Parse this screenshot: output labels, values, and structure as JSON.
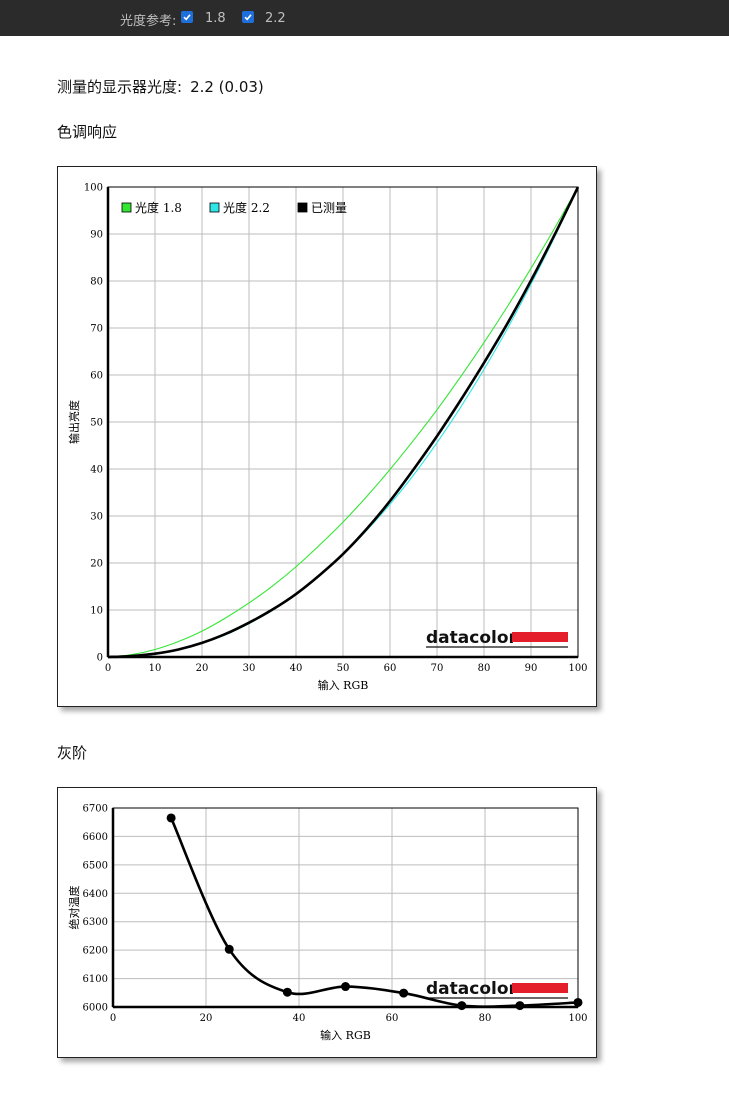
{
  "header": {
    "gamma_ref_label": "光度参考:",
    "options": [
      {
        "label": "1.8",
        "checked": true
      },
      {
        "label": "2.2",
        "checked": true
      }
    ]
  },
  "summary": {
    "label": "测量的显示器光度:",
    "value": "2.2 (0.03)"
  },
  "sections": {
    "tone_title": "色调响应",
    "gray_title": "灰阶"
  },
  "colors": {
    "gamma18": "#33e633",
    "gamma22": "#2ee6e6",
    "measured": "#000000",
    "grid": "#bdbdbd",
    "brand_bar": "#e41e2b"
  },
  "brand": "datacolor",
  "chart_data": [
    {
      "type": "line",
      "xlabel": "输入 RGB",
      "ylabel": "输出亮度",
      "xlim": [
        0,
        100
      ],
      "ylim": [
        0,
        100
      ],
      "xticks": [
        0,
        10,
        20,
        30,
        40,
        50,
        60,
        70,
        80,
        90,
        100
      ],
      "yticks": [
        0,
        10,
        20,
        30,
        40,
        50,
        60,
        70,
        80,
        90,
        100
      ],
      "grid": true,
      "legend": "top-left",
      "series": [
        {
          "name": "光度 1.8",
          "key": "gamma18",
          "x": [
            0,
            5,
            10,
            15,
            20,
            25,
            30,
            35,
            40,
            45,
            50,
            55,
            60,
            65,
            70,
            75,
            80,
            85,
            90,
            95,
            100
          ],
          "y": [
            0,
            0.5,
            1.6,
            3.3,
            5.5,
            8.3,
            11.5,
            15.1,
            19.2,
            23.8,
            28.7,
            34.1,
            39.9,
            46.1,
            52.6,
            59.6,
            66.9,
            74.6,
            82.7,
            91.2,
            100
          ]
        },
        {
          "name": "光度 2.2",
          "key": "gamma22",
          "x": [
            0,
            5,
            10,
            15,
            20,
            25,
            30,
            35,
            40,
            45,
            50,
            55,
            60,
            65,
            70,
            75,
            80,
            85,
            90,
            95,
            100
          ],
          "y": [
            0,
            0.1,
            0.6,
            1.5,
            2.9,
            4.7,
            7.1,
            9.9,
            13.3,
            17.3,
            21.8,
            26.9,
            32.5,
            38.7,
            45.6,
            53.1,
            61.2,
            69.9,
            79.3,
            89.3,
            100
          ]
        },
        {
          "name": "已测量",
          "key": "measured",
          "x": [
            0,
            5,
            10,
            15,
            20,
            25,
            30,
            35,
            40,
            45,
            50,
            55,
            60,
            65,
            70,
            75,
            80,
            85,
            90,
            95,
            100
          ],
          "y": [
            0,
            0.2,
            0.7,
            1.6,
            3.0,
            4.9,
            7.3,
            10.1,
            13.4,
            17.4,
            21.9,
            27.2,
            33.2,
            39.9,
            47.0,
            54.6,
            62.6,
            71.0,
            80.1,
            89.8,
            100
          ]
        }
      ]
    },
    {
      "type": "line",
      "xlabel": "输入 RGB",
      "ylabel": "绝对温度",
      "xlim": [
        0,
        100
      ],
      "ylim": [
        6000,
        6700
      ],
      "xticks": [
        0,
        20,
        40,
        60,
        80,
        100
      ],
      "yticks": [
        6000,
        6100,
        6200,
        6300,
        6400,
        6500,
        6600,
        6700
      ],
      "grid": true,
      "series": [
        {
          "key": "measured",
          "x": [
            12.5,
            25,
            37.5,
            50,
            62.5,
            75,
            87.5,
            100
          ],
          "y": [
            6665,
            6203,
            6052,
            6072,
            6049,
            6005,
            6005,
            6016
          ]
        }
      ]
    }
  ]
}
